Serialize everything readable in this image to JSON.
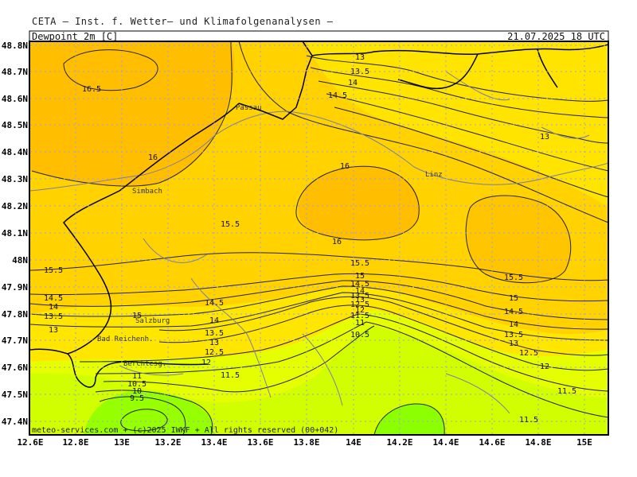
{
  "header": {
    "institute": "CETA — Inst. f. Wetter— und Klimafolgenanalysen —",
    "parameter": "Dewpoint 2m [C]",
    "valid_time": "21.07.2025 18 UTC"
  },
  "footer": {
    "copyright": "meteo-services.com + (c)2025 IWKF + All rights reserved (00+042)"
  },
  "axes": {
    "lat_ticks": [
      "48.8N",
      "48.7N",
      "48.6N",
      "48.5N",
      "48.4N",
      "48.3N",
      "48.2N",
      "48.1N",
      "48N",
      "47.9N",
      "47.8N",
      "47.7N",
      "47.6N",
      "47.5N",
      "47.4N"
    ],
    "lon_ticks": [
      "12.6E",
      "12.8E",
      "13E",
      "13.2E",
      "13.4E",
      "13.6E",
      "13.8E",
      "14E",
      "14.2E",
      "14.4E",
      "14.6E",
      "14.8E",
      "15E"
    ]
  },
  "cities": [
    "Passau",
    "Linz",
    "Simbach",
    "Salzburg",
    "Bad Reichenh.",
    "Berchtesg."
  ],
  "contour_labels": [
    "16.5",
    "16",
    "16",
    "16",
    "15.5",
    "15.5",
    "15.5",
    "15.5",
    "15",
    "15",
    "15",
    "14.5",
    "14.5",
    "14.5",
    "14.5",
    "14",
    "14",
    "14",
    "14",
    "13.5",
    "13.5",
    "13.5",
    "13.5",
    "13",
    "13",
    "13",
    "13",
    "12.5",
    "12.5",
    "12.5",
    "12",
    "12",
    "12",
    "11.5",
    "11.5",
    "11.5",
    "11.5",
    "11",
    "11",
    "10.5",
    "10.5",
    "10",
    "9.5"
  ],
  "colors": {
    "light_yellow": "#ffe600",
    "yellow_orange": "#ffd200",
    "orange": "#ffbe00",
    "lime": "#e6ff00",
    "light_green": "#c8ff00",
    "green": "#96ff00",
    "grid": "#a0a0e0",
    "border": "#000000",
    "river": "#8080a0"
  }
}
